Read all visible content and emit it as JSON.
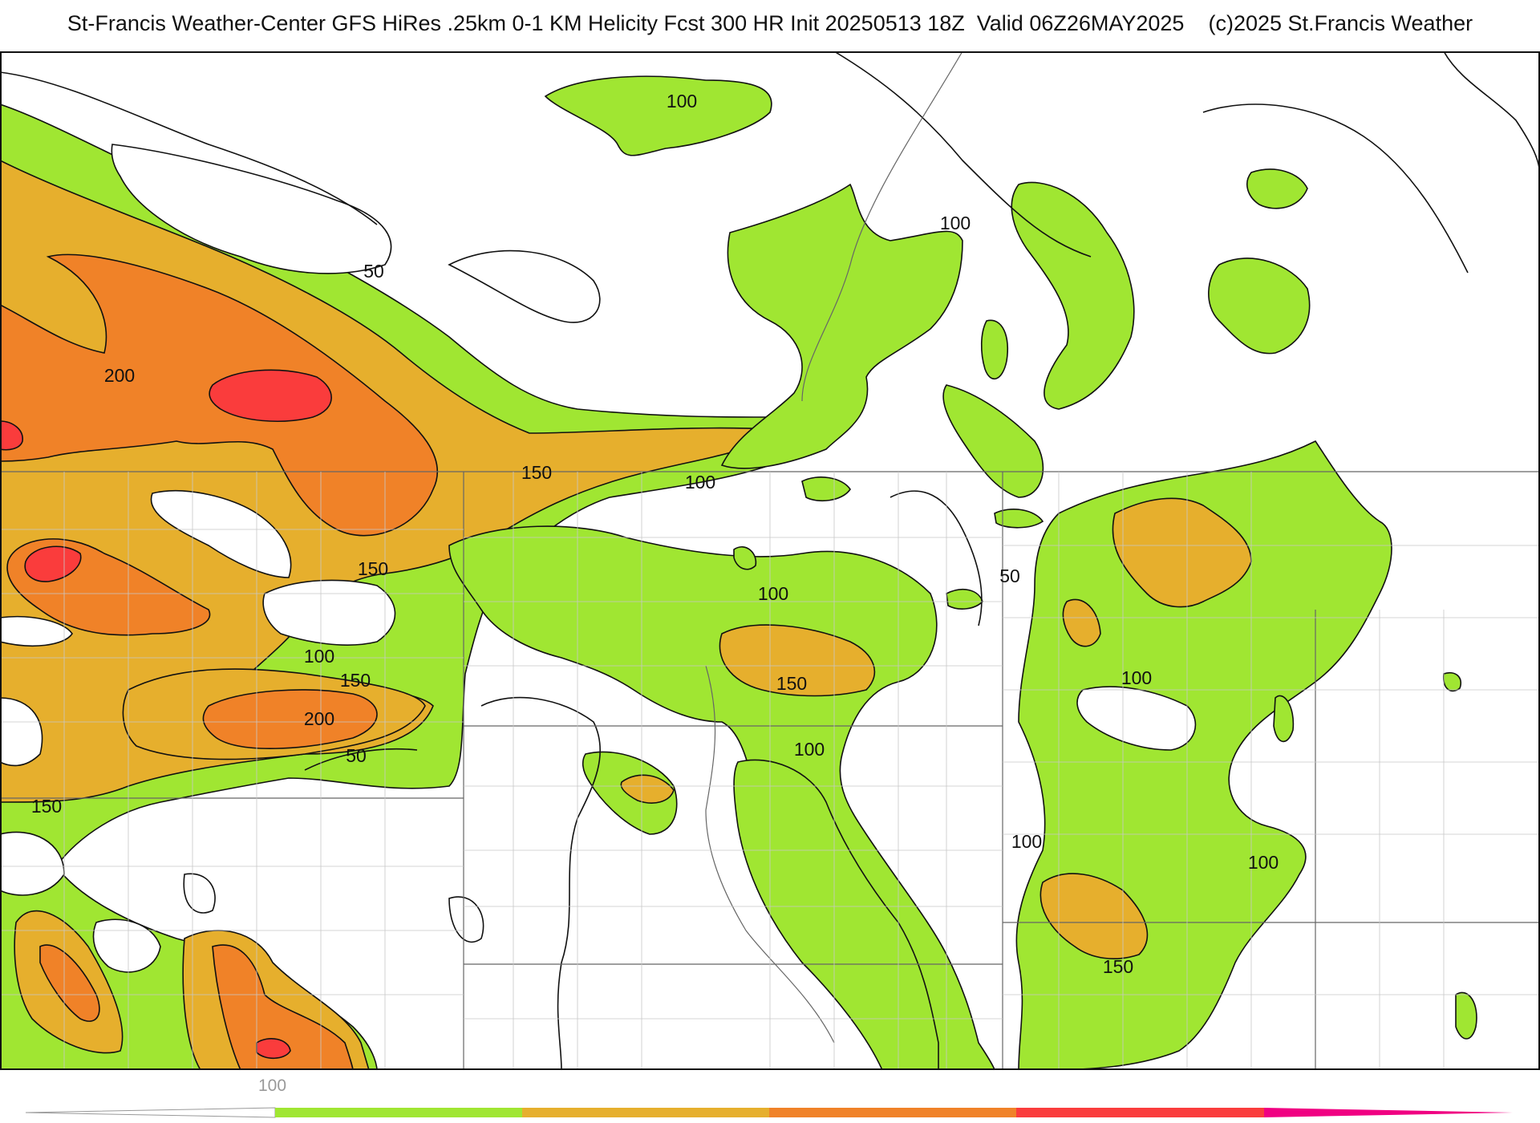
{
  "header": {
    "title": "St-Francis Weather-Center GFS HiRes .25km 0-1 KM Helicity Fcst 300 HR Init 20250513 18Z  Valid 06Z26MAY2025",
    "copyright": "(c)2025 St.Francis Weather"
  },
  "colors": {
    "lvl100": "#a0e632",
    "lvl150": "#e6af2d",
    "lvl200": "#f08228",
    "lvl250": "#fa3c3c",
    "lvl300": "#f00082",
    "contour": "#111111",
    "boundary": "#888888"
  },
  "map_labels": {
    "l1": "100",
    "l2": "100",
    "l3": "50",
    "l4": "200",
    "l5": "150",
    "l6": "100",
    "l7": "150",
    "l8": "50",
    "l9": "100",
    "l10": "100",
    "l11": "150",
    "l12": "200",
    "l13": "50",
    "l14": "150",
    "l15": "150",
    "l16": "100",
    "l17": "100",
    "l18": "100",
    "l19": "100",
    "l20": "150"
  },
  "colorbar": {
    "label": "100",
    "levels": [
      100,
      150,
      200,
      250,
      300
    ]
  }
}
